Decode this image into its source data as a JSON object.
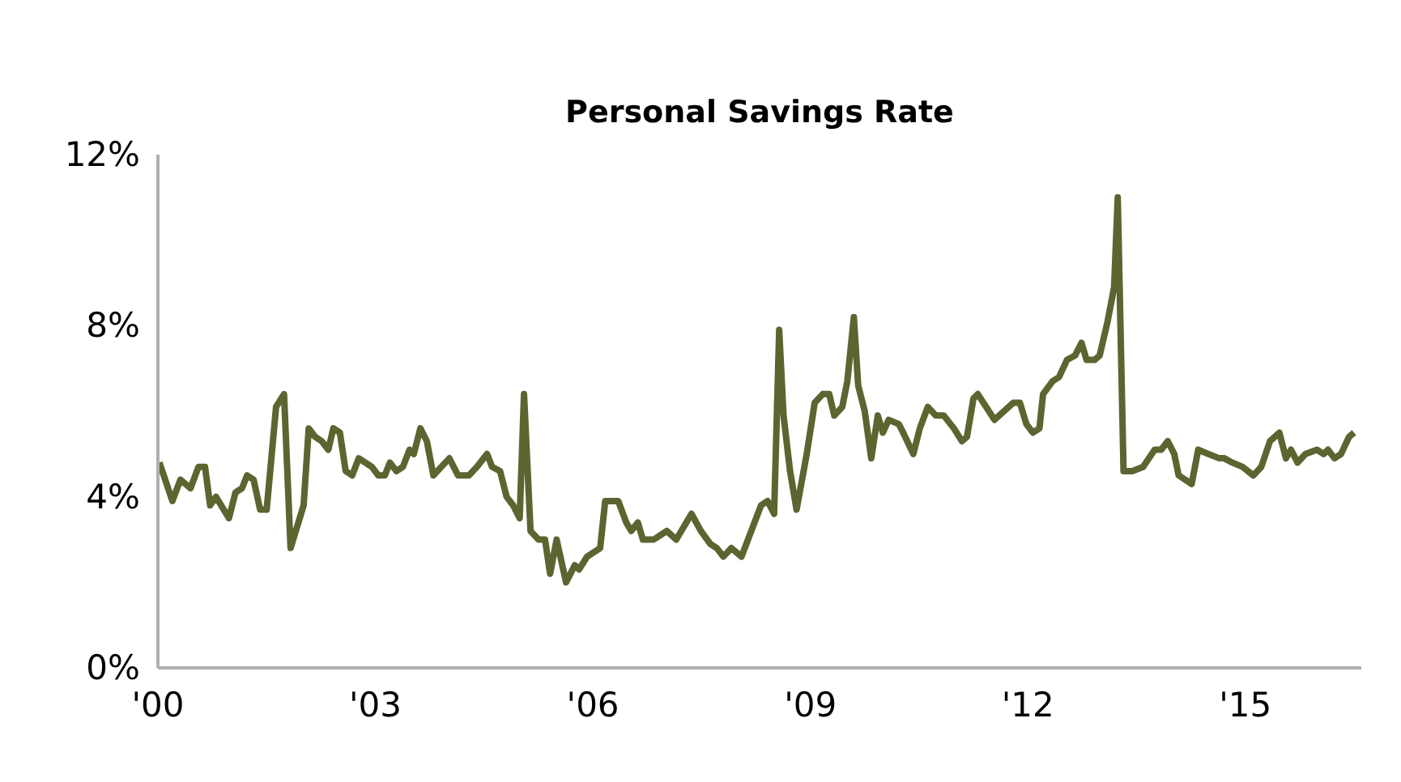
{
  "chart_data": {
    "type": "line",
    "title": "Personal Savings Rate",
    "xlim": [
      2000,
      2016.6
    ],
    "ylim": [
      0,
      12
    ],
    "xticks": [
      {
        "value": 2000,
        "label": "'00"
      },
      {
        "value": 2003,
        "label": "'03"
      },
      {
        "value": 2006,
        "label": "'06"
      },
      {
        "value": 2009,
        "label": "'09"
      },
      {
        "value": 2012,
        "label": "'12"
      },
      {
        "value": 2015,
        "label": "'15"
      }
    ],
    "yticks": [
      {
        "value": 0,
        "label": "0%"
      },
      {
        "value": 4,
        "label": "4%"
      },
      {
        "value": 8,
        "label": "8%"
      },
      {
        "value": 12,
        "label": "12%"
      }
    ],
    "grid": false,
    "marker": "none",
    "line_style": "solid",
    "x": [
      2000.02,
      2000.2,
      2000.31,
      2000.45,
      2000.56,
      2000.65,
      2000.72,
      2000.8,
      2000.98,
      2001.07,
      2001.16,
      2001.23,
      2001.32,
      2001.41,
      2001.5,
      2001.63,
      2001.74,
      2001.83,
      2002.01,
      2002.08,
      2002.17,
      2002.26,
      2002.35,
      2002.42,
      2002.51,
      2002.59,
      2002.68,
      2002.77,
      2002.86,
      2002.95,
      2003.04,
      2003.13,
      2003.2,
      2003.29,
      2003.38,
      2003.47,
      2003.53,
      2003.62,
      2003.71,
      2003.8,
      2004.02,
      2004.14,
      2004.29,
      2004.4,
      2004.54,
      2004.61,
      2004.72,
      2004.81,
      2004.9,
      2004.99,
      2005.05,
      2005.14,
      2005.25,
      2005.34,
      2005.41,
      2005.5,
      2005.63,
      2005.75,
      2005.81,
      2005.92,
      2006.1,
      2006.17,
      2006.35,
      2006.46,
      2006.53,
      2006.62,
      2006.69,
      2006.84,
      2007.02,
      2007.15,
      2007.36,
      2007.49,
      2007.62,
      2007.71,
      2007.8,
      2007.91,
      2008.05,
      2008.14,
      2008.23,
      2008.32,
      2008.41,
      2008.5,
      2008.57,
      2008.63,
      2008.72,
      2008.81,
      2008.95,
      2009.06,
      2009.17,
      2009.26,
      2009.33,
      2009.44,
      2009.51,
      2009.6,
      2009.66,
      2009.75,
      2009.84,
      2009.93,
      2010.0,
      2010.08,
      2010.22,
      2010.28,
      2010.42,
      2010.51,
      2010.62,
      2010.73,
      2010.84,
      2010.98,
      2011.09,
      2011.16,
      2011.25,
      2011.31,
      2011.54,
      2011.8,
      2011.89,
      2011.98,
      2012.07,
      2012.16,
      2012.21,
      2012.34,
      2012.43,
      2012.54,
      2012.65,
      2012.74,
      2012.81,
      2012.92,
      2012.99,
      2013.1,
      2013.19,
      2013.24,
      2013.32,
      2013.44,
      2013.59,
      2013.75,
      2013.84,
      2013.93,
      2014.02,
      2014.08,
      2014.26,
      2014.35,
      2014.49,
      2014.64,
      2014.71,
      2014.82,
      2014.96,
      2015.11,
      2015.22,
      2015.34,
      2015.47,
      2015.56,
      2015.63,
      2015.72,
      2015.83,
      2015.99,
      2016.08,
      2016.14,
      2016.23,
      2016.32,
      2016.43,
      2016.5
    ],
    "series": [
      {
        "color": "#5c6530",
        "values": [
          4.8,
          3.9,
          4.4,
          4.2,
          4.7,
          4.7,
          3.8,
          4.0,
          3.5,
          4.1,
          4.2,
          4.5,
          4.4,
          3.7,
          3.7,
          6.1,
          6.4,
          2.8,
          3.8,
          5.6,
          5.4,
          5.3,
          5.1,
          5.6,
          5.5,
          4.6,
          4.5,
          4.9,
          4.8,
          4.7,
          4.5,
          4.5,
          4.8,
          4.6,
          4.7,
          5.1,
          5.0,
          5.6,
          5.3,
          4.5,
          4.9,
          4.5,
          4.5,
          4.7,
          5.0,
          4.7,
          4.6,
          4.0,
          3.8,
          3.5,
          6.4,
          3.2,
          3.0,
          3.0,
          2.2,
          3.0,
          2.0,
          2.4,
          2.3,
          2.6,
          2.8,
          3.9,
          3.9,
          3.4,
          3.2,
          3.4,
          3.0,
          3.0,
          3.2,
          3.0,
          3.6,
          3.2,
          2.9,
          2.8,
          2.6,
          2.8,
          2.6,
          3.0,
          3.4,
          3.8,
          3.9,
          3.6,
          7.9,
          5.9,
          4.6,
          3.7,
          5.0,
          6.2,
          6.4,
          6.4,
          5.9,
          6.1,
          6.7,
          8.2,
          6.6,
          6.0,
          4.9,
          5.9,
          5.5,
          5.8,
          5.7,
          5.5,
          5.0,
          5.6,
          6.1,
          5.9,
          5.9,
          5.6,
          5.3,
          5.4,
          6.3,
          6.4,
          5.8,
          6.2,
          6.2,
          5.7,
          5.5,
          5.6,
          6.4,
          6.7,
          6.8,
          7.2,
          7.3,
          7.6,
          7.2,
          7.2,
          7.3,
          8.1,
          8.9,
          11.0,
          4.6,
          4.6,
          4.7,
          5.1,
          5.1,
          5.3,
          5.0,
          4.5,
          4.3,
          5.1,
          5.0,
          4.9,
          4.9,
          4.8,
          4.7,
          4.5,
          4.7,
          5.3,
          5.5,
          4.9,
          5.1,
          4.8,
          5.0,
          5.1,
          5.0,
          5.1,
          4.9,
          5.0,
          5.4,
          5.5
        ]
      }
    ]
  }
}
